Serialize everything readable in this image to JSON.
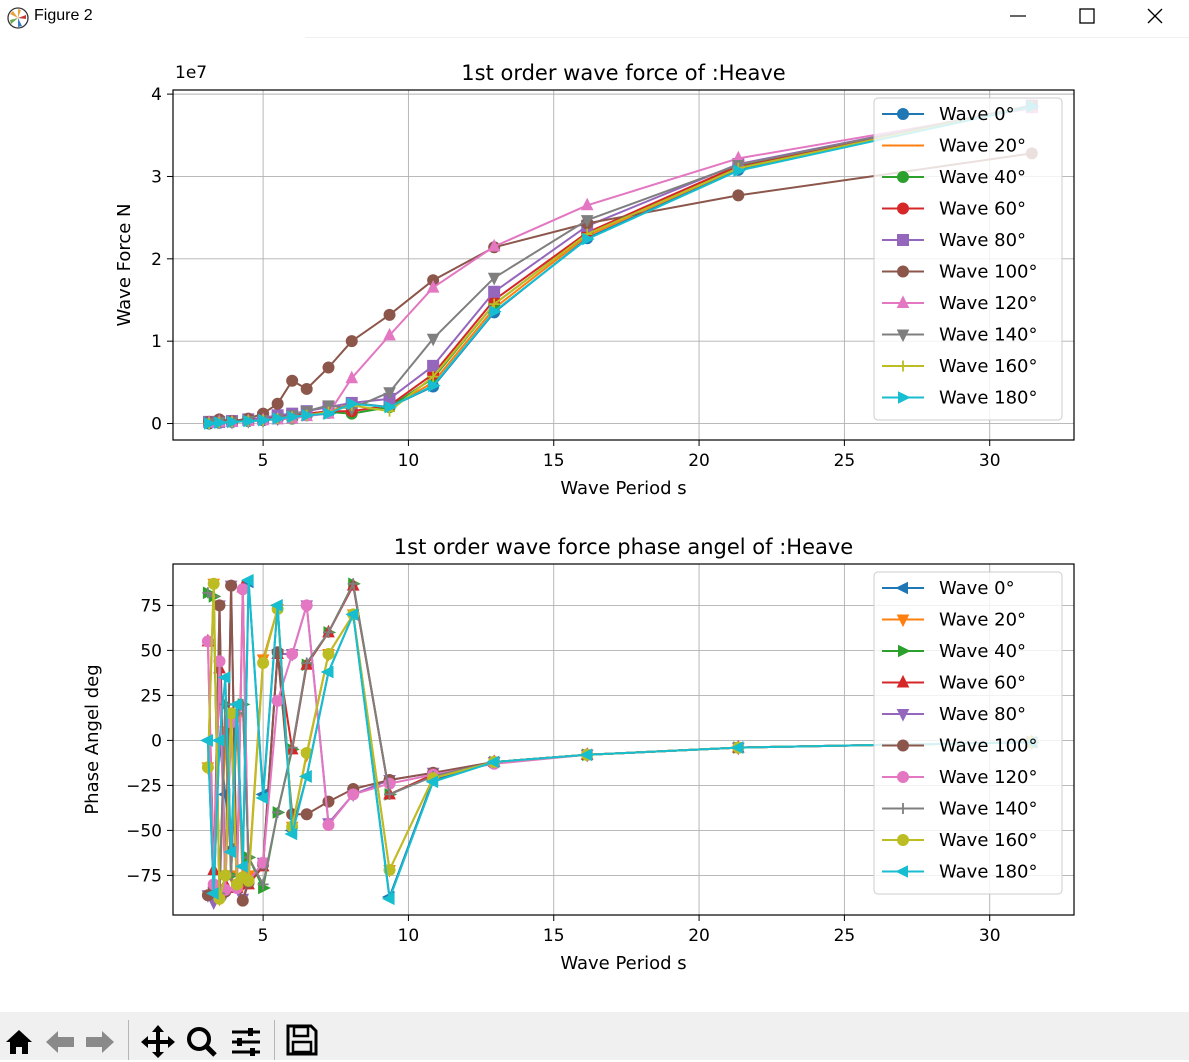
{
  "window": {
    "title": "Figure 2"
  },
  "toolbar": {
    "items": [
      "home-icon",
      "back-arrow-icon",
      "forward-arrow-icon",
      "pan-icon",
      "zoom-icon",
      "configure-subplots-icon",
      "save-icon"
    ]
  },
  "chart_data": [
    {
      "type": "line",
      "title": "1st order wave force of :Heave",
      "xlabel": "Wave Period  s",
      "ylabel": "Wave Force  N",
      "y_offset_label": "1e7",
      "xlim": [
        1.9,
        32.9
      ],
      "ylim": [
        -0.2,
        4.05
      ],
      "xticks": [
        5,
        10,
        15,
        20,
        25,
        30
      ],
      "yticks": [
        0,
        1,
        2,
        3,
        4
      ],
      "ytick_labels": [
        "0",
        "1",
        "2",
        "3",
        "4"
      ],
      "grid": true,
      "legend": "upper-right",
      "x": [
        3.14,
        3.49,
        3.93,
        4.49,
        5.0,
        5.5,
        6.0,
        6.5,
        7.25,
        8.05,
        9.35,
        10.85,
        12.95,
        16.15,
        21.35,
        31.45
      ],
      "series": [
        {
          "name": "Wave 0°",
          "color": "#1f77b4",
          "marker": "circle",
          "values": [
            0.0,
            0.01,
            0.02,
            0.03,
            0.04,
            0.06,
            0.08,
            0.1,
            0.13,
            0.25,
            0.2,
            0.45,
            1.35,
            2.25,
            3.08,
            3.85
          ]
        },
        {
          "name": "Wave 20°",
          "color": "#ff7f0e",
          "marker": "none",
          "values": [
            0.0,
            0.01,
            0.02,
            0.03,
            0.05,
            0.06,
            0.08,
            0.1,
            0.14,
            0.25,
            0.19,
            0.5,
            1.4,
            2.28,
            3.1,
            3.85
          ]
        },
        {
          "name": "Wave 40°",
          "color": "#2ca02c",
          "marker": "hexagon",
          "values": [
            0.01,
            0.02,
            0.03,
            0.04,
            0.05,
            0.07,
            0.06,
            0.1,
            0.14,
            0.12,
            0.2,
            0.55,
            1.45,
            2.3,
            3.12,
            3.86
          ]
        },
        {
          "name": "Wave 60°",
          "color": "#d62728",
          "marker": "octagon",
          "values": [
            0.01,
            0.02,
            0.03,
            0.04,
            0.05,
            0.08,
            0.1,
            0.12,
            0.15,
            0.15,
            0.22,
            0.6,
            1.5,
            2.32,
            3.13,
            3.86
          ]
        },
        {
          "name": "Wave 80°",
          "color": "#9467bd",
          "marker": "square",
          "values": [
            0.02,
            0.02,
            0.03,
            0.05,
            0.07,
            0.1,
            0.12,
            0.15,
            0.2,
            0.25,
            0.3,
            0.7,
            1.6,
            2.4,
            3.15,
            3.86
          ]
        },
        {
          "name": "Wave 100°",
          "color": "#8c564b",
          "marker": "circle",
          "values": [
            0.02,
            0.05,
            0.03,
            0.06,
            0.12,
            0.24,
            0.52,
            0.42,
            0.68,
            1.0,
            1.32,
            1.74,
            2.14,
            2.43,
            2.77,
            3.28
          ]
        },
        {
          "name": "Wave 120°",
          "color": "#e377c2",
          "marker": "triangle-up",
          "values": [
            0.01,
            0.02,
            0.02,
            0.03,
            0.04,
            0.05,
            0.06,
            0.09,
            0.12,
            0.55,
            1.07,
            1.65,
            2.15,
            2.65,
            3.22,
            3.83
          ]
        },
        {
          "name": "Wave 140°",
          "color": "#7f7f7f",
          "marker": "triangle-down",
          "values": [
            0.01,
            0.02,
            0.02,
            0.03,
            0.04,
            0.06,
            0.1,
            0.15,
            0.22,
            0.18,
            0.38,
            1.03,
            1.77,
            2.47,
            3.14,
            3.86
          ]
        },
        {
          "name": "Wave 160°",
          "color": "#bcbd22",
          "marker": "plus",
          "values": [
            0.0,
            0.01,
            0.02,
            0.03,
            0.04,
            0.06,
            0.08,
            0.1,
            0.14,
            0.22,
            0.15,
            0.57,
            1.45,
            2.3,
            3.1,
            3.85
          ]
        },
        {
          "name": "Wave 180°",
          "color": "#17becf",
          "marker": "triangle-right",
          "values": [
            0.0,
            0.01,
            0.02,
            0.03,
            0.04,
            0.06,
            0.08,
            0.1,
            0.12,
            0.24,
            0.2,
            0.46,
            1.36,
            2.24,
            3.07,
            3.85
          ]
        }
      ]
    },
    {
      "type": "line",
      "title": "1st order wave force phase angel of :Heave",
      "xlabel": "Wave Period  s",
      "ylabel": "Phase Angel  deg",
      "xlim": [
        1.9,
        32.9
      ],
      "ylim": [
        -97,
        98
      ],
      "xticks": [
        5,
        10,
        15,
        20,
        25,
        30
      ],
      "yticks": [
        -75,
        -50,
        -25,
        0,
        25,
        50,
        75
      ],
      "ytick_labels": [
        "−75",
        "−50",
        "−25",
        "0",
        "25",
        "50",
        "75"
      ],
      "grid": true,
      "legend": "upper-right",
      "series": [
        {
          "name": "Wave 0°",
          "color": "#1f77b4",
          "marker": "triangle-left",
          "x": [
            3.1,
            3.3,
            3.5,
            3.7,
            3.9,
            4.1,
            4.3,
            4.5,
            5.0,
            5.5,
            6.0,
            6.5,
            7.25,
            8.1,
            9.35,
            10.85,
            12.95,
            16.15,
            21.35,
            31.45
          ],
          "y": [
            0,
            -85,
            0,
            -30,
            -60,
            20,
            -70,
            88,
            -30,
            75,
            -50,
            -20,
            38,
            70,
            -87,
            -22,
            -12,
            -8,
            -4,
            -1
          ]
        },
        {
          "name": "Wave 20°",
          "color": "#ff7f0e",
          "marker": "triangle-down",
          "x": [
            3.1,
            3.3,
            3.5,
            3.7,
            3.9,
            4.1,
            4.3,
            4.5,
            5.0,
            5.5,
            6.0,
            6.5,
            7.25,
            8.1,
            9.35,
            10.85,
            12.95,
            16.15,
            21.35,
            31.45
          ],
          "y": [
            -15,
            87,
            -88,
            5,
            -75,
            12,
            -80,
            -75,
            45,
            73,
            -48,
            -8,
            48,
            70,
            -72,
            -21,
            -12,
            -8,
            -4,
            -1
          ]
        },
        {
          "name": "Wave 40°",
          "color": "#2ca02c",
          "marker": "triangle-right",
          "x": [
            3.1,
            3.3,
            3.5,
            3.7,
            3.9,
            4.1,
            4.3,
            4.5,
            5.0,
            5.5,
            6.0,
            6.5,
            7.25,
            8.1,
            9.35,
            10.85,
            12.95,
            16.15,
            21.35,
            31.45
          ],
          "y": [
            82,
            80,
            -85,
            20,
            -75,
            15,
            20,
            -65,
            -82,
            -40,
            -5,
            42,
            60,
            87,
            -30,
            -19,
            -12,
            -8,
            -4,
            -1
          ]
        },
        {
          "name": "Wave 60°",
          "color": "#d62728",
          "marker": "triangle-up",
          "x": [
            3.1,
            3.3,
            3.5,
            3.7,
            3.9,
            4.1,
            4.3,
            4.5,
            5.0,
            5.5,
            6.0,
            6.5,
            7.25,
            8.1,
            9.35,
            10.85,
            12.95,
            16.15,
            21.35,
            31.45
          ],
          "y": [
            55,
            -72,
            40,
            -80,
            10,
            -82,
            85,
            -80,
            -70,
            48,
            -5,
            42,
            60,
            86,
            -30,
            -19,
            -12,
            -8,
            -4,
            -1
          ]
        },
        {
          "name": "Wave 80°",
          "color": "#9467bd",
          "marker": "triangle-down",
          "x": [
            3.1,
            3.3,
            3.5,
            3.7,
            3.9,
            4.1,
            4.3,
            4.5,
            5.0,
            5.5,
            6.0,
            6.5,
            7.25,
            8.1,
            9.35,
            10.85,
            12.95,
            16.15,
            21.35,
            31.45
          ],
          "y": [
            -86,
            -90,
            75,
            -85,
            86,
            -80,
            -88,
            -78,
            -68,
            48,
            48,
            75,
            -46,
            -30,
            -22,
            -18,
            -12,
            -8,
            -4,
            -1
          ]
        },
        {
          "name": "Wave 100°",
          "color": "#8c564b",
          "marker": "circle",
          "x": [
            3.1,
            3.3,
            3.5,
            3.7,
            3.9,
            4.1,
            4.3,
            4.5,
            5.0,
            5.5,
            6.0,
            6.5,
            7.25,
            8.1,
            9.35,
            10.85,
            12.95,
            16.15,
            21.35,
            31.45
          ],
          "y": [
            -86,
            -82,
            75,
            -84,
            86,
            -80,
            -89,
            -79,
            -69,
            49,
            -41,
            -41,
            -34,
            -27,
            -22,
            -18,
            -12,
            -8,
            -4,
            -1
          ]
        },
        {
          "name": "Wave 120°",
          "color": "#e377c2",
          "marker": "circle",
          "x": [
            3.1,
            3.3,
            3.5,
            3.7,
            3.9,
            4.1,
            4.3,
            4.5,
            5.0,
            5.5,
            6.0,
            6.5,
            7.25,
            8.1,
            9.35,
            10.85,
            12.95,
            16.15,
            21.35,
            31.45
          ],
          "y": [
            55,
            -80,
            44,
            -83,
            10,
            -82,
            84,
            -78,
            -68,
            22,
            48,
            75,
            -47,
            -30,
            -24,
            -19,
            -13,
            -8,
            -4,
            -1
          ]
        },
        {
          "name": "Wave 140°",
          "color": "#7f7f7f",
          "marker": "plus",
          "x": [
            3.1,
            3.3,
            3.5,
            3.7,
            3.9,
            4.1,
            4.3,
            4.5,
            5.0,
            5.5,
            6.0,
            6.5,
            7.25,
            8.1,
            9.35,
            10.85,
            12.95,
            16.15,
            21.35,
            31.45
          ],
          "y": [
            82,
            80,
            -85,
            20,
            -75,
            15,
            20,
            -65,
            -80,
            -40,
            -4,
            43,
            60,
            87,
            -30,
            -20,
            -12,
            -8,
            -4,
            -1
          ]
        },
        {
          "name": "Wave 160°",
          "color": "#bcbd22",
          "marker": "circle",
          "x": [
            3.1,
            3.3,
            3.5,
            3.7,
            3.9,
            4.1,
            4.3,
            4.5,
            5.0,
            5.5,
            6.0,
            6.5,
            7.25,
            8.1,
            9.35,
            10.85,
            12.95,
            16.15,
            21.35,
            31.45
          ],
          "y": [
            -15,
            87,
            -88,
            -75,
            15,
            -80,
            -76,
            -78,
            43,
            73,
            -48,
            -7,
            48,
            70,
            -72,
            -21,
            -12,
            -8,
            -4,
            -1
          ]
        },
        {
          "name": "Wave 180°",
          "color": "#17becf",
          "marker": "triangle-left",
          "x": [
            3.1,
            3.3,
            3.5,
            3.7,
            3.9,
            4.1,
            4.3,
            4.5,
            5.0,
            5.5,
            6.0,
            6.5,
            7.25,
            8.1,
            9.35,
            10.85,
            12.95,
            16.15,
            21.35,
            31.45
          ],
          "y": [
            0,
            -85,
            0,
            35,
            -62,
            20,
            -70,
            89,
            -32,
            75,
            -52,
            -20,
            38,
            70,
            -88,
            -23,
            -12,
            -8,
            -4,
            -1
          ]
        }
      ]
    }
  ]
}
